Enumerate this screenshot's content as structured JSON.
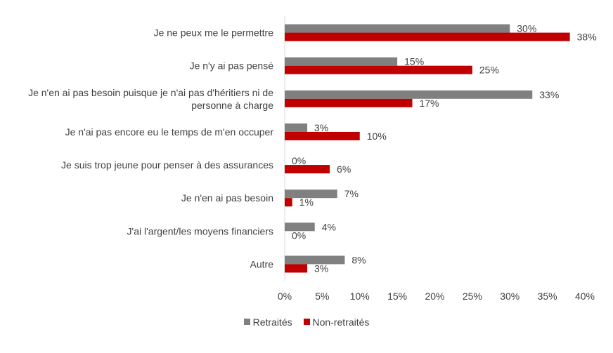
{
  "chart_data": {
    "type": "bar",
    "orientation": "horizontal",
    "categories": [
      [
        "Je ne peux me le permettre"
      ],
      [
        "Je n'y ai pas pensé"
      ],
      [
        "Je n'en ai pas besoin puisque je n'ai pas d'héritiers ni de",
        "personne à charge"
      ],
      [
        "Je n'ai pas encore eu le temps de m'en occuper"
      ],
      [
        "Je suis trop jeune pour penser à des assurances"
      ],
      [
        "Je n'en ai pas besoin"
      ],
      [
        "J'ai l'argent/les moyens financiers"
      ],
      [
        "Autre"
      ]
    ],
    "series": [
      {
        "name": "Retraités",
        "color": "#808080",
        "values": [
          30,
          15,
          33,
          3,
          0,
          7,
          4,
          8
        ]
      },
      {
        "name": "Non-retraités",
        "color": "#C00000",
        "values": [
          38,
          25,
          17,
          10,
          6,
          1,
          0,
          3
        ]
      }
    ],
    "value_suffix": "%",
    "xlim": [
      0,
      40
    ],
    "xticks": [
      0,
      5,
      10,
      15,
      20,
      25,
      30,
      35,
      40
    ],
    "title": "",
    "xlabel": "",
    "ylabel": "",
    "grid": false,
    "legend_position": "bottom"
  }
}
